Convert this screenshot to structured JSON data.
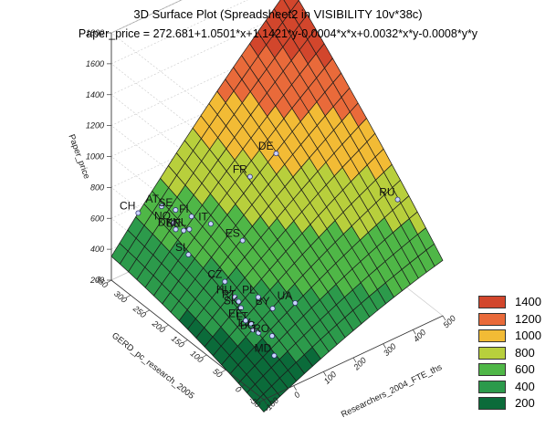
{
  "title": "3D Surface Plot (Spreadsheet2 in VISIBILITY 10v*38c)",
  "subtitle": "Paper_price = 272.681+1.0501*x+1.1421*y-0.0004*x*x+0.0032*x*y-0.0008*y*y",
  "chart_data": {
    "type": "surface",
    "x_axis": {
      "label": "Researchers_2004_FTE_ths",
      "ticks": [
        "-100",
        "0",
        "100",
        "200",
        "300",
        "400",
        "500"
      ],
      "range": [
        -100,
        500
      ]
    },
    "y_axis": {
      "label": "GERD_pc_research_2005",
      "ticks": [
        "-50",
        "0",
        "50",
        "100",
        "150",
        "200",
        "250",
        "300",
        "350"
      ],
      "range": [
        -50,
        350
      ]
    },
    "z_axis": {
      "label": "Paper_price",
      "ticks": [
        "200",
        "400",
        "600",
        "800",
        "1000",
        "1200",
        "1400",
        "1600",
        "1800"
      ],
      "range": [
        200,
        1800
      ]
    },
    "coefficients": {
      "const": 272.681,
      "x": 1.0501,
      "y": 1.1421,
      "xx": -0.0004,
      "xy": 0.0032,
      "yy": -0.0008
    },
    "points": [
      {
        "label": "DE",
        "x": 280,
        "y": 215
      },
      {
        "label": "FR",
        "x": 205,
        "y": 225
      },
      {
        "label": "RU",
        "x": 470,
        "y": 45
      },
      {
        "label": "AT",
        "x": 30,
        "y": 320
      },
      {
        "label": "CH",
        "x": -10,
        "y": 350
      },
      {
        "label": "SE",
        "x": 45,
        "y": 295
      },
      {
        "label": "NO",
        "x": 25,
        "y": 285
      },
      {
        "label": "FI",
        "x": 60,
        "y": 265
      },
      {
        "label": "DK",
        "x": 20,
        "y": 275
      },
      {
        "label": "BE",
        "x": 30,
        "y": 262
      },
      {
        "label": "NL",
        "x": 40,
        "y": 255
      },
      {
        "label": "ES",
        "x": 110,
        "y": 170
      },
      {
        "label": "IT",
        "x": 80,
        "y": 230
      },
      {
        "label": "SI",
        "x": 5,
        "y": 230
      },
      {
        "label": "CZ",
        "x": 25,
        "y": 150
      },
      {
        "label": "UA",
        "x": 120,
        "y": 40
      },
      {
        "label": "BY",
        "x": 70,
        "y": 60
      },
      {
        "label": "HU",
        "x": 20,
        "y": 120
      },
      {
        "label": "PL",
        "x": 60,
        "y": 90
      },
      {
        "label": "PT",
        "x": 20,
        "y": 110
      },
      {
        "label": "SK",
        "x": 15,
        "y": 100
      },
      {
        "label": "LT",
        "x": 10,
        "y": 70
      },
      {
        "label": "LV",
        "x": 5,
        "y": 60
      },
      {
        "label": "BG",
        "x": 10,
        "y": 50
      },
      {
        "label": "RO",
        "x": 30,
        "y": 30
      },
      {
        "label": "EE",
        "x": 5,
        "y": 80
      },
      {
        "label": "MD",
        "x": 5,
        "y": 5
      }
    ],
    "legend": [
      {
        "label": "1400",
        "color": "#d2462c"
      },
      {
        "label": "1200",
        "color": "#e96a3a"
      },
      {
        "label": "1000",
        "color": "#f2bb35"
      },
      {
        "label": "800",
        "color": "#b8cf3c"
      },
      {
        "label": "600",
        "color": "#4fb747"
      },
      {
        "label": "400",
        "color": "#2c9a4b"
      },
      {
        "label": "200",
        "color": "#0b6b3a"
      }
    ],
    "legend_position": "bottom-right"
  }
}
